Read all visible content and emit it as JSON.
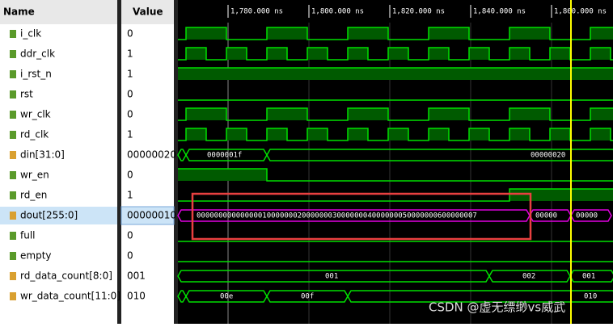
{
  "header": {
    "name": "Name",
    "value": "Value"
  },
  "time_labels": [
    "1,780.000 ns",
    "1,800.000 ns",
    "1,820.000 ns",
    "1,840.000 ns",
    "1,860.000 ns"
  ],
  "signals": [
    {
      "name": "i_clk",
      "value": "0"
    },
    {
      "name": "ddr_clk",
      "value": "1"
    },
    {
      "name": "i_rst_n",
      "value": "1"
    },
    {
      "name": "rst",
      "value": "0"
    },
    {
      "name": "wr_clk",
      "value": "0"
    },
    {
      "name": "rd_clk",
      "value": "1"
    },
    {
      "name": "din[31:0]",
      "value": "00000020",
      "bus_labels": [
        "0000001f",
        "00000020"
      ]
    },
    {
      "name": "wr_en",
      "value": "0"
    },
    {
      "name": "rd_en",
      "value": "1"
    },
    {
      "name": "dout[255:0]",
      "value": "00000010",
      "bus_labels": [
        "0000000000000001000000020000000300000004000000050000000600000007",
        "00000",
        "00000"
      ]
    },
    {
      "name": "full",
      "value": "0"
    },
    {
      "name": "empty",
      "value": "0"
    },
    {
      "name": "rd_data_count[8:0]",
      "value": "001",
      "bus_labels": [
        "001",
        "002",
        "001"
      ]
    },
    {
      "name": "wr_data_count[11:0]",
      "value": "010",
      "bus_labels": [
        "00e",
        "00f",
        "010"
      ]
    }
  ],
  "watermark": "CSDN @虚无缥缈vs威武"
}
